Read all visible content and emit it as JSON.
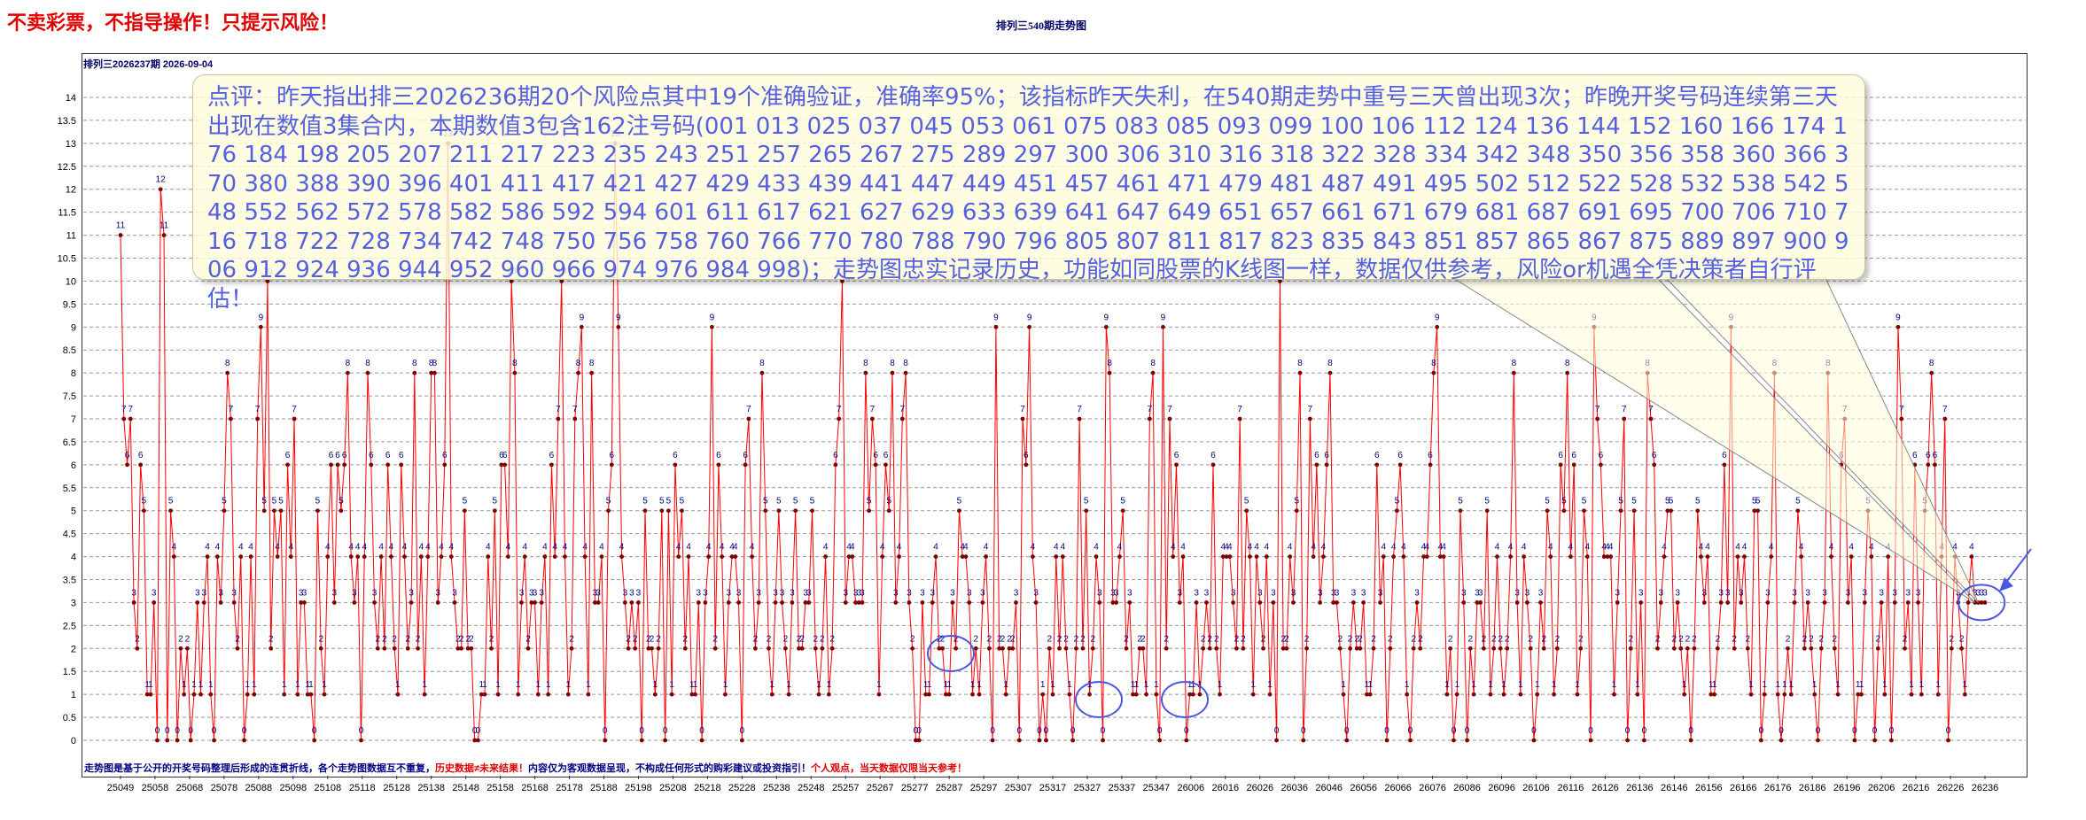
{
  "warning": "不卖彩票，不指导操作！只提示风险！",
  "chart_data": {
    "type": "line",
    "title": "排列三540期走势图",
    "subtitle": "排列三2026237期   2026-09-04",
    "ylim": [
      0,
      14
    ],
    "yticks": [
      "0",
      "0.5",
      "1",
      "1.5",
      "2",
      "2.5",
      "3",
      "3.5",
      "4",
      "4.5",
      "5",
      "5.5",
      "6",
      "6.5",
      "7",
      "7.5",
      "8",
      "8.5",
      "9",
      "9.5",
      "10",
      "10.5",
      "11",
      "11.5",
      "12",
      "12.5",
      "13",
      "13.5",
      "14"
    ],
    "x_tick_labels": [
      "25049",
      "25058",
      "25068",
      "25078",
      "25088",
      "25098",
      "25108",
      "25118",
      "25128",
      "25138",
      "25148",
      "25158",
      "25168",
      "25178",
      "25188",
      "25198",
      "25208",
      "25218",
      "25228",
      "25238",
      "25248",
      "25257",
      "25267",
      "25277",
      "25287",
      "25297",
      "25307",
      "25317",
      "25327",
      "25337",
      "25347",
      "26006",
      "26016",
      "26026",
      "26036",
      "26046",
      "26056",
      "26066",
      "26076",
      "26086",
      "26096",
      "26106",
      "26116",
      "26126",
      "26136",
      "26146",
      "26156",
      "26166",
      "26176",
      "26186",
      "26196",
      "26206",
      "26216",
      "26226",
      "26236"
    ],
    "series": [
      {
        "color": "#ff0000",
        "marker_color": "#800000",
        "label_color": "#000080",
        "values": [
          11,
          7,
          6,
          7,
          3,
          2,
          6,
          5,
          1,
          1,
          3,
          0,
          12,
          11,
          0,
          5,
          4,
          0,
          2,
          1,
          2,
          0,
          1,
          3,
          1,
          3,
          4,
          1,
          0,
          4,
          3,
          5,
          8,
          7,
          3,
          2,
          4,
          0,
          1,
          4,
          1,
          7,
          9,
          5,
          10,
          2,
          5,
          4,
          5,
          1,
          6,
          4,
          7,
          1,
          3,
          3,
          1,
          1,
          0,
          5,
          2,
          1,
          4,
          6,
          3,
          6,
          5,
          6,
          8,
          4,
          3,
          4,
          0,
          4,
          8,
          6,
          3,
          2,
          4,
          2,
          6,
          4,
          2,
          1,
          6,
          4,
          2,
          3,
          8,
          2,
          4,
          1,
          4,
          8,
          8,
          3,
          4,
          6,
          13,
          4,
          3,
          2,
          2,
          5,
          2,
          2,
          0,
          0,
          1,
          1,
          4,
          2,
          5,
          1,
          6,
          6,
          4,
          10,
          8,
          1,
          3,
          4,
          2,
          3,
          3,
          1,
          3,
          4,
          1,
          6,
          4,
          7,
          10,
          4,
          1,
          2,
          7,
          8,
          9,
          4,
          1,
          8,
          3,
          3,
          4,
          0,
          5,
          6,
          13,
          9,
          4,
          3,
          2,
          3,
          2,
          3,
          0,
          5,
          2,
          2,
          1,
          2,
          5,
          0,
          5,
          1,
          6,
          4,
          5,
          2,
          4,
          1,
          1,
          3,
          0,
          3,
          4,
          9,
          2,
          6,
          4,
          1,
          3,
          4,
          4,
          3,
          0,
          6,
          7,
          4,
          2,
          3,
          8,
          5,
          2,
          1,
          3,
          5,
          3,
          2,
          1,
          3,
          5,
          2,
          2,
          3,
          3,
          5,
          2,
          1,
          2,
          4,
          1,
          2,
          6,
          7,
          10,
          3,
          4,
          4,
          3,
          3,
          3,
          8,
          5,
          7,
          6,
          1,
          4,
          6,
          5,
          8,
          3,
          4,
          7,
          8,
          3,
          2,
          0,
          0,
          3,
          1,
          1,
          3,
          4,
          2,
          2,
          1,
          1,
          3,
          2,
          5,
          4,
          4,
          3,
          1,
          2,
          1,
          3,
          4,
          2,
          0,
          9,
          2,
          2,
          1,
          2,
          2,
          3,
          0,
          7,
          6,
          9,
          4,
          3,
          0,
          1,
          0,
          2,
          1,
          4,
          2,
          4,
          2,
          1,
          0,
          2,
          7,
          2,
          5,
          1,
          2,
          4,
          3,
          0,
          9,
          8,
          3,
          3,
          4,
          5,
          2,
          3,
          1,
          1,
          2,
          2,
          1,
          7,
          8,
          1,
          0,
          9,
          2,
          7,
          4,
          6,
          3,
          4,
          0,
          1,
          1,
          3,
          1,
          2,
          3,
          2,
          6,
          2,
          1,
          4,
          4,
          4,
          3,
          2,
          7,
          2,
          5,
          4,
          1,
          4,
          3,
          2,
          4,
          1,
          3,
          0,
          10,
          2,
          2,
          4,
          3,
          5,
          8,
          0,
          2,
          7,
          4,
          6,
          3,
          4,
          6,
          8,
          3,
          3,
          2,
          1,
          0,
          2,
          3,
          2,
          2,
          3,
          1,
          1,
          2,
          6,
          3,
          4,
          0,
          2,
          4,
          5,
          6,
          4,
          1,
          0,
          2,
          3,
          2,
          4,
          4,
          6,
          8,
          9,
          4,
          4,
          1,
          2,
          0,
          1,
          5,
          3,
          0,
          2,
          1,
          3,
          3,
          2,
          5,
          1,
          2,
          4,
          2,
          1,
          2,
          4,
          8,
          3,
          1,
          4,
          3,
          2,
          0,
          1,
          3,
          2,
          5,
          4,
          1,
          2,
          6,
          5,
          8,
          4,
          6,
          1,
          2,
          5,
          4,
          0,
          9,
          7,
          6,
          4,
          4,
          4,
          1,
          3,
          5,
          7,
          0,
          2,
          5,
          1,
          3,
          0,
          8,
          7,
          6,
          2,
          3,
          4,
          5,
          5,
          2,
          3,
          2,
          1,
          2,
          0,
          2,
          5,
          4,
          3,
          4,
          1,
          1,
          2,
          3,
          6,
          3,
          9,
          2,
          4,
          3,
          4,
          2,
          1,
          5,
          5,
          0,
          1,
          3,
          4,
          8,
          1,
          0,
          1,
          2,
          1,
          3,
          5,
          4,
          2,
          3,
          2,
          1,
          0,
          2,
          3,
          8,
          4,
          2,
          1,
          6,
          7,
          3,
          4,
          0,
          1,
          1,
          3,
          5,
          4,
          0,
          2,
          3,
          1,
          4,
          0,
          3,
          9,
          7,
          2,
          3,
          1,
          6,
          3,
          1,
          5,
          6,
          8,
          6,
          1,
          4,
          7,
          0,
          2,
          4,
          3,
          2,
          1,
          3,
          4,
          3,
          3,
          3,
          3
        ]
      }
    ]
  },
  "commentary": "点评：昨天指出排三2026236期20个风险点其中19个准确验证，准确率95%；该指标昨天失利，在540期走势中重号三天曾出现3次；昨晚开奖号码连续第三天出现在数值3集合内，本期数值3包含162注号码(001 013 025 037 045 053 061 075 083 085 093 099 100 106 112 124 136 144 152 160 166 174 176 184 198 205 207 211 217 223 235 243 251 257 265 267 275 289 297 300 306 310 316 318 322 328 334 342 348 350 356 358 360 366 370 380 388 390 396 401 411 417 421 427 429 433 439 441 447 449 451 457 461 471 479 481 487 491 495 502 512 522 528 532 538 542 548 552 562 572 578 582 586 592 594 601 611 617 621 627 629 633 639 641 647 649 651 657 661 671 679 681 687 691 695 700 706 710 716 718 722 728 734 742 748 750 756 758 760 766 770 780 788 790 796 805 807 811 817 823 835 843 851 857 865 867 875 889 897 900 906 912 924 936 944 952 960 966 974 976 984 998)；走势图忠实记录历史，功能如同股票的K线图一样，数据仅供参考，风险or机遇全凭决策者自行评估！",
  "footer": {
    "part1": "走势图是基于公开的开奖号码整理后形成的连贯折线，各个走势图数据互不重复，",
    "part2": "历史数据≠未来结果！",
    "part3": "内容仅为客观数据呈现，不构成任何形式的购彩建议或投资指引！",
    "part4": "个人观点，当天数据仅限当天参考！"
  },
  "annotations": {
    "circle_color": "#4a56e0",
    "circled_label": "3"
  }
}
